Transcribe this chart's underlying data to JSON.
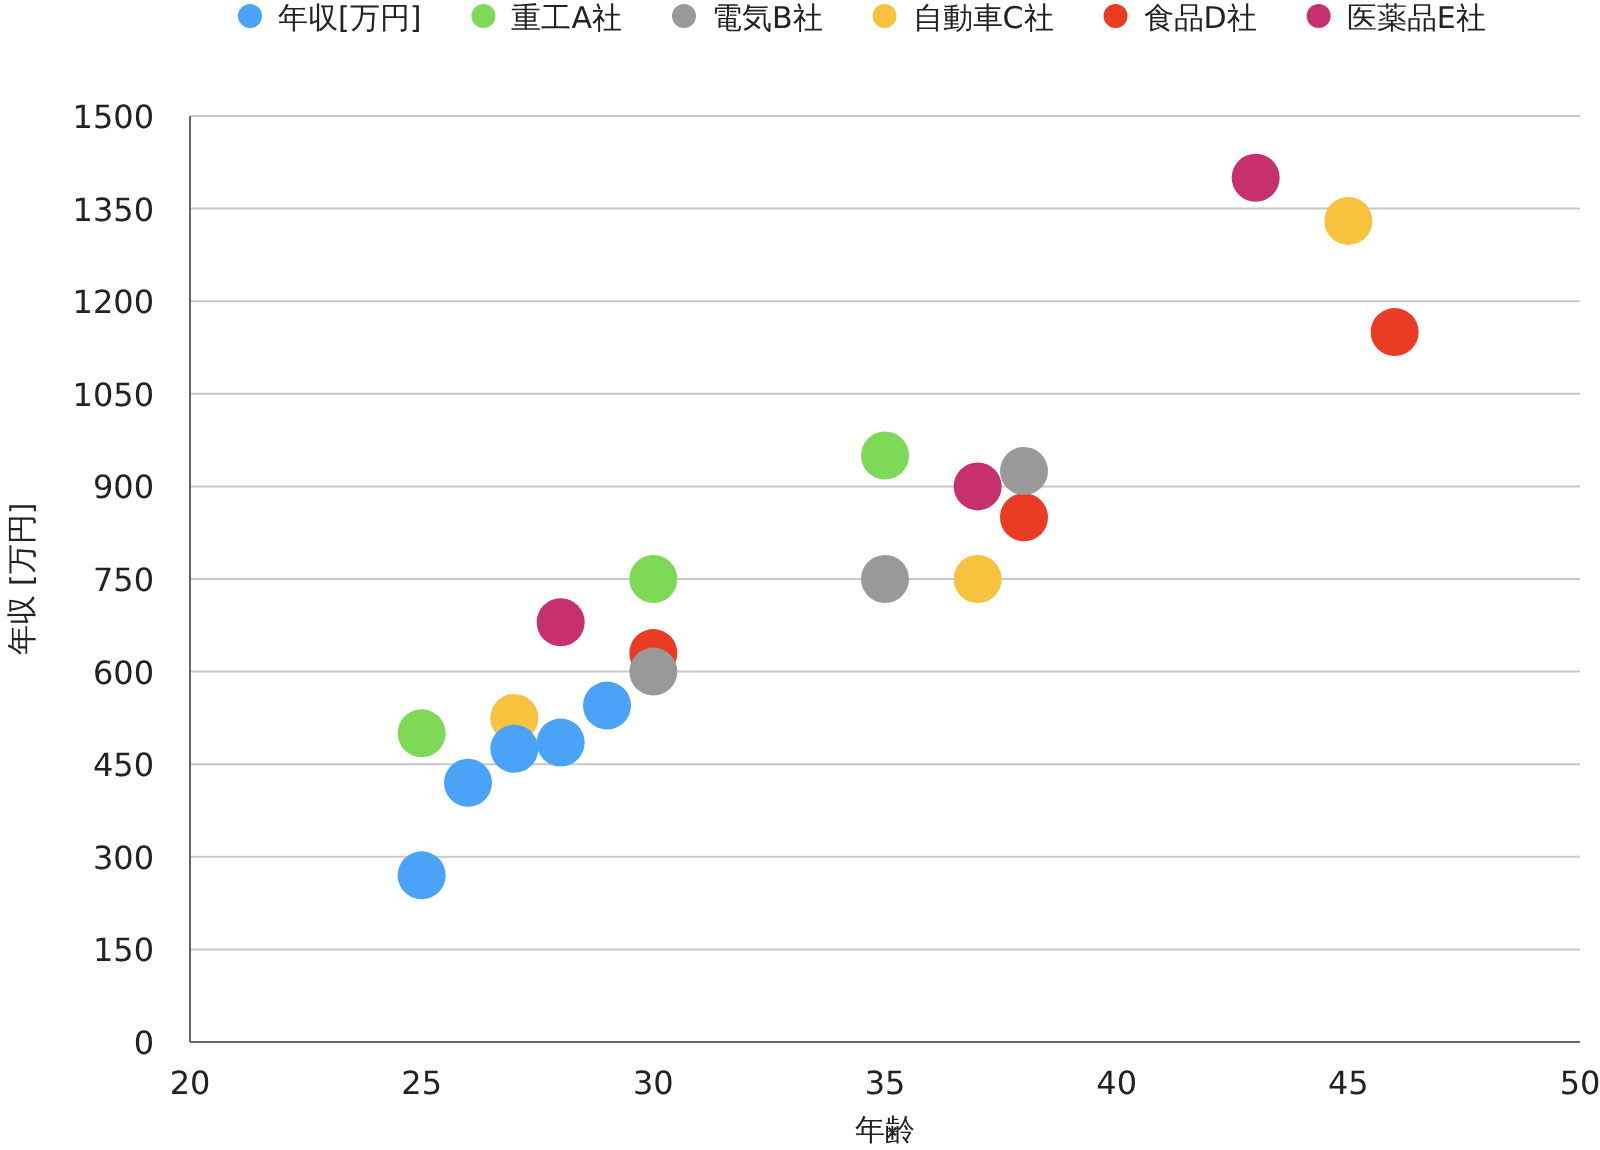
{
  "chart_data": {
    "type": "scatter",
    "xlabel": "年齢",
    "ylabel": "年収 [万円]",
    "xlim": [
      20,
      50
    ],
    "xticks": [
      20,
      25,
      30,
      35,
      40,
      45,
      50
    ],
    "ylim": [
      0,
      1500
    ],
    "yticks": [
      0,
      150,
      300,
      450,
      600,
      750,
      900,
      1050,
      1200,
      1350,
      1500
    ],
    "grid": "y",
    "legend": "top",
    "marker": "circle",
    "series": [
      {
        "name": "年収[万円]",
        "color": "#4aa3f7",
        "x": [
          25,
          26,
          27,
          28,
          29
        ],
        "values": [
          270,
          420,
          475,
          485,
          545
        ]
      },
      {
        "name": "重工A社",
        "color": "#7ed957",
        "x": [
          25,
          30,
          35
        ],
        "values": [
          500,
          750,
          950
        ]
      },
      {
        "name": "電気B社",
        "color": "#999999",
        "x": [
          30,
          35,
          38
        ],
        "values": [
          600,
          750,
          925
        ]
      },
      {
        "name": "自動車C社",
        "color": "#f7c23e",
        "x": [
          27,
          37,
          45
        ],
        "values": [
          525,
          750,
          1330
        ]
      },
      {
        "name": "食品D社",
        "color": "#ea3b24",
        "x": [
          30,
          38,
          46
        ],
        "values": [
          630,
          850,
          1150
        ]
      },
      {
        "name": "医薬品E社",
        "color": "#c6306f",
        "x": [
          28,
          37,
          43
        ],
        "values": [
          680,
          900,
          1400
        ]
      }
    ]
  }
}
